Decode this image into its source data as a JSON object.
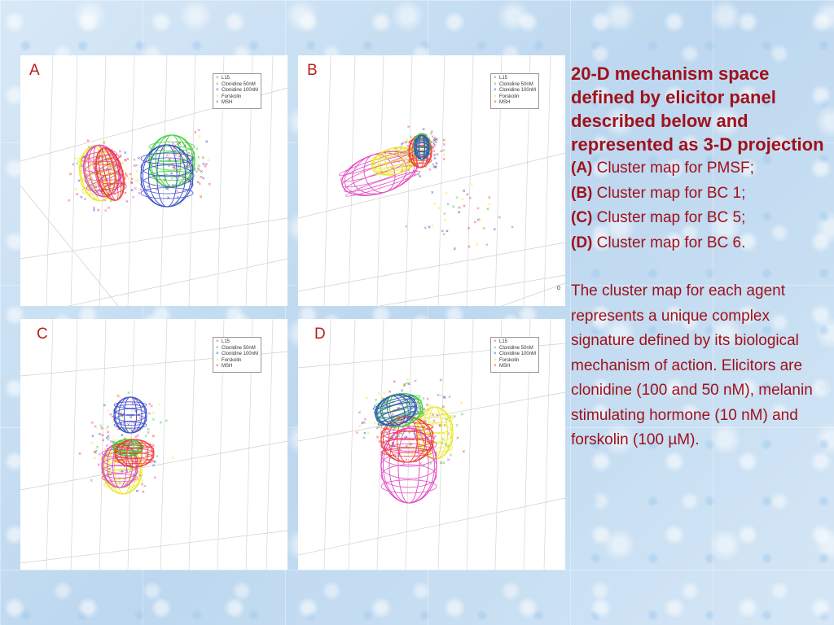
{
  "legend": [
    "L15",
    "Clonidine 50nM",
    "Clonidine 100nM",
    "Forskolin",
    "MSH"
  ],
  "colors": {
    "l15": "#e040c0",
    "clonidine_50": "#33cc33",
    "clonidine_100": "#3344cc",
    "forskolin": "#e8e81a",
    "msh": "#ee3333",
    "label": "#b8211a",
    "text": "#a0111b"
  },
  "panels": [
    {
      "letter": "A",
      "axis_tick": ""
    },
    {
      "letter": "B",
      "axis_tick": "0"
    },
    {
      "letter": "C",
      "axis_tick": ""
    },
    {
      "letter": "D",
      "axis_tick": ""
    }
  ],
  "text": {
    "heading": "20-D mechanism space defined by elicitor panel described below and represented as 3-D projection",
    "captions": [
      {
        "tag": "(A)",
        "desc": "Cluster map for PMSF;"
      },
      {
        "tag": "(B)",
        "desc": "Cluster map for BC 1;"
      },
      {
        "tag": "(C)",
        "desc": "Cluster map for BC 5;"
      },
      {
        "tag": "(D)",
        "desc": "Cluster map for BC 6."
      }
    ],
    "paragraph": "The cluster map for each agent represents a unique complex signature defined by its biological mechanism of action.   Elicitors are clonidine (100 and 50 nM), melanin stimulating hormone (10 nM) and forskolin (100 µM)."
  }
}
